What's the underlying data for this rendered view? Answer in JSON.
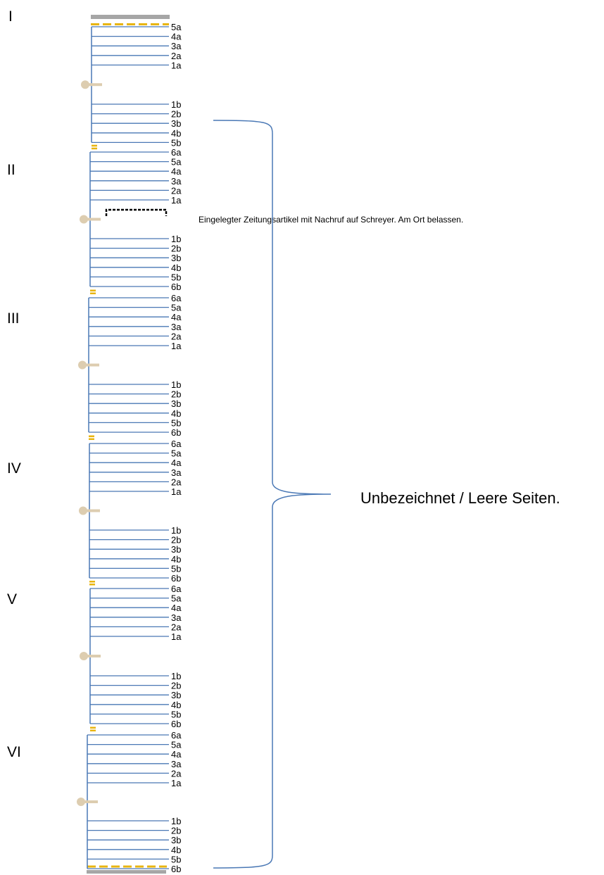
{
  "colors": {
    "leaf_line": "#4a78b5",
    "thread": "#e8b511",
    "cover": "#a6a6a6",
    "binding": "#ddcdb0",
    "brace": "#4a78b5"
  },
  "cover_top_label": "I",
  "gatherings": [
    {
      "id": "I",
      "a_labels": [
        "5a",
        "4a",
        "3a",
        "2a",
        "1a"
      ],
      "b_labels": [
        "1b",
        "2b",
        "3b",
        "4b",
        "5b"
      ]
    },
    {
      "id": "II",
      "a_labels": [
        "6a",
        "5a",
        "4a",
        "3a",
        "2a",
        "1a"
      ],
      "b_labels": [
        "1b",
        "2b",
        "3b",
        "4b",
        "5b",
        "6b"
      ]
    },
    {
      "id": "III",
      "a_labels": [
        "6a",
        "5a",
        "4a",
        "3a",
        "2a",
        "1a"
      ],
      "b_labels": [
        "1b",
        "2b",
        "3b",
        "4b",
        "5b",
        "6b"
      ]
    },
    {
      "id": "IV",
      "a_labels": [
        "6a",
        "5a",
        "4a",
        "3a",
        "2a",
        "1a"
      ],
      "b_labels": [
        "1b",
        "2b",
        "3b",
        "4b",
        "5b",
        "6b"
      ]
    },
    {
      "id": "V",
      "a_labels": [
        "6a",
        "5a",
        "4a",
        "3a",
        "2a",
        "1a"
      ],
      "b_labels": [
        "1b",
        "2b",
        "3b",
        "4b",
        "5b",
        "6b"
      ]
    },
    {
      "id": "VI",
      "a_labels": [
        "6a",
        "5a",
        "4a",
        "3a",
        "2a",
        "1a"
      ],
      "b_labels": [
        "1b",
        "2b",
        "3b",
        "4b",
        "5b",
        "6b"
      ]
    }
  ],
  "insert_note": "Eingelegter Zeitungsartikel mit Nachruf auf Schreyer. Am Ort belassen.",
  "brace_label": "Unbezeichnet / Leere Seiten."
}
